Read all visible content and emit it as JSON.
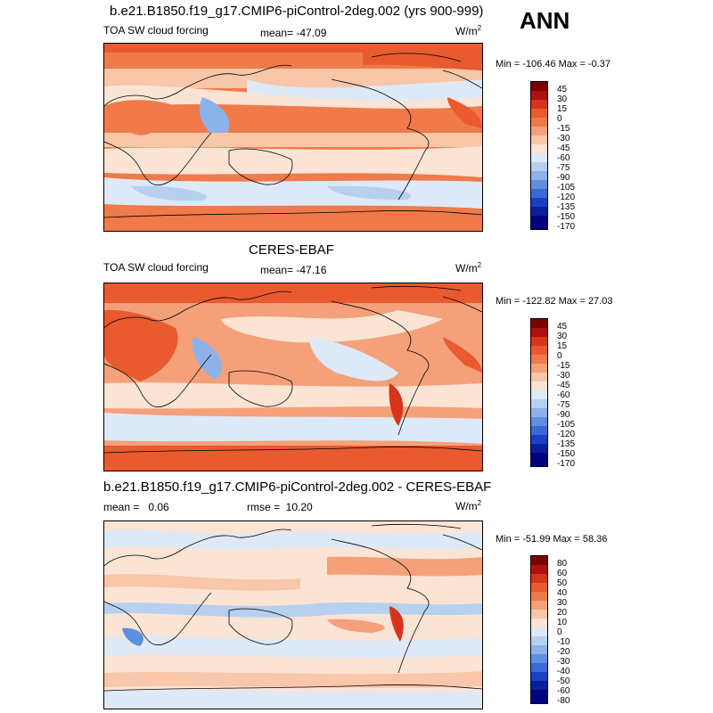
{
  "season": "ANN",
  "panel1": {
    "title": "b.e21.B1850.f19_g17.CMIP6-piControl-2deg.002 (yrs 900-999)",
    "variable": "TOA SW cloud forcing",
    "stat": "mean= -47.09",
    "units": "W/m",
    "units_exp": "2",
    "minmax": "Min = -106.46 Max =  -0.37",
    "levels": [
      "45",
      "30",
      "15",
      "0",
      "-15",
      "-30",
      "-45",
      "-60",
      "-75",
      "-90",
      "-105",
      "-120",
      "-135",
      "-150",
      "-170"
    ]
  },
  "panel2": {
    "title": "CERES-EBAF",
    "variable": "TOA SW cloud forcing",
    "stat": "mean= -47.16",
    "units": "W/m",
    "units_exp": "2",
    "minmax": "Min = -122.82 Max =  27.03",
    "levels": [
      "45",
      "30",
      "15",
      "0",
      "-15",
      "-30",
      "-45",
      "-60",
      "-75",
      "-90",
      "-105",
      "-120",
      "-135",
      "-150",
      "-170"
    ]
  },
  "panel3": {
    "title": "b.e21.B1850.f19_g17.CMIP6-piControl-2deg.002 - CERES-EBAF",
    "stat_left": "mean =   0.06",
    "stat": "rmse =  10.20",
    "units": "W/m",
    "units_exp": "2",
    "minmax": "Min = -51.99 Max =  58.36",
    "levels": [
      "80",
      "60",
      "50",
      "40",
      "30",
      "20",
      "10",
      "0",
      "-10",
      "-20",
      "-30",
      "-40",
      "-50",
      "-60",
      "-80"
    ]
  },
  "colors": {
    "scale": [
      "#7a0000",
      "#b01010",
      "#d8341c",
      "#e95a2f",
      "#f07a4a",
      "#f4a07a",
      "#f8c6a8",
      "#fce4d4",
      "#dde9f7",
      "#b7d0f0",
      "#8db2ea",
      "#5f8fe0",
      "#3a68d8",
      "#1a3fc4",
      "#0a1fa0",
      "#000080"
    ],
    "land_outline": "#000000"
  }
}
